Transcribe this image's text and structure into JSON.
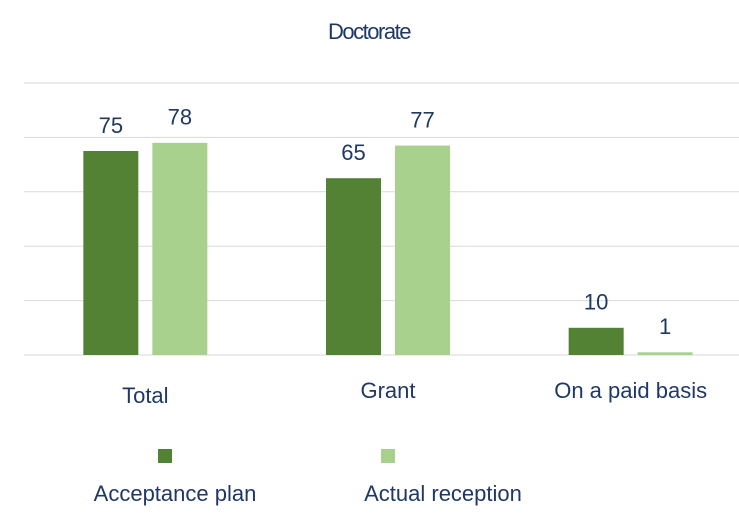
{
  "chart_data": {
    "type": "bar",
    "title": "Doctorate",
    "categories": [
      "Total",
      "Grant",
      "On a paid basis"
    ],
    "series": [
      {
        "name": "Acceptance plan",
        "color": "#548235",
        "values": [
          75,
          65,
          10
        ]
      },
      {
        "name": "Actual reception",
        "color": "#a9d18e",
        "values": [
          78,
          77,
          1
        ]
      }
    ],
    "ylim": [
      0,
      100
    ],
    "yticks": [
      0,
      20,
      40,
      60,
      80,
      100
    ],
    "grid": true,
    "legend": "bottom"
  }
}
